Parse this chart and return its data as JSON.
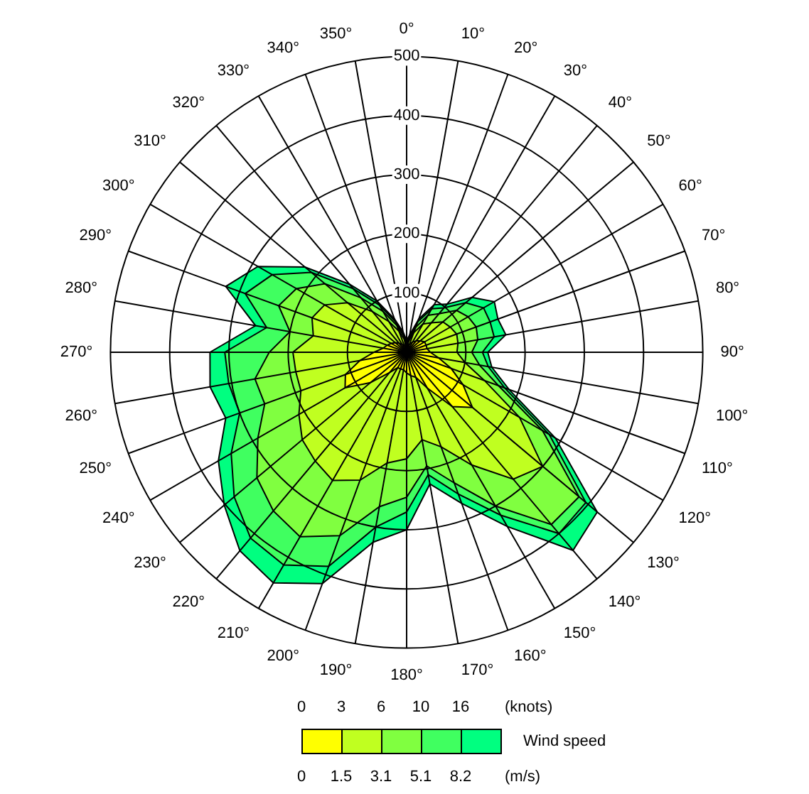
{
  "chart_data": {
    "type": "radar",
    "categories": [
      "0°",
      "10°",
      "20°",
      "30°",
      "40°",
      "50°",
      "60°",
      "70°",
      "80°",
      "90°",
      "100°",
      "110°",
      "120°",
      "130°",
      "140°",
      "150°",
      "160°",
      "170°",
      "180°",
      "190°",
      "200°",
      "210°",
      "220°",
      "230°",
      "240°",
      "250°",
      "260°",
      "270°",
      "280°",
      "290°",
      "300°",
      "310°",
      "320°",
      "330°",
      "340°",
      "350°"
    ],
    "series": [
      {
        "color": "#ffff00",
        "values": [
          8,
          10,
          15,
          20,
          25,
          30,
          35,
          35,
          35,
          40,
          55,
          80,
          110,
          145,
          120,
          70,
          45,
          40,
          35,
          30,
          30,
          30,
          45,
          80,
          120,
          110,
          80,
          55,
          40,
          35,
          30,
          25,
          20,
          15,
          12,
          10
        ]
      },
      {
        "color": "#c0ff20",
        "values": [
          12,
          18,
          35,
          55,
          65,
          80,
          85,
          90,
          88,
          85,
          100,
          140,
          220,
          300,
          280,
          220,
          170,
          150,
          180,
          190,
          230,
          250,
          240,
          230,
          210,
          190,
          190,
          192,
          160,
          170,
          160,
          130,
          90,
          60,
          38,
          22
        ]
      },
      {
        "color": "#80ff40",
        "values": [
          15,
          22,
          45,
          72,
          85,
          110,
          120,
          125,
          122,
          110,
          125,
          165,
          265,
          380,
          380,
          300,
          235,
          195,
          245,
          265,
          330,
          360,
          350,
          330,
          290,
          255,
          260,
          232,
          200,
          230,
          215,
          180,
          120,
          80,
          48,
          28
        ]
      },
      {
        "color": "#40ff60",
        "values": [
          18,
          27,
          55,
          85,
          98,
          130,
          150,
          150,
          150,
          128,
          140,
          176,
          278,
          395,
          400,
          318,
          255,
          210,
          270,
          300,
          385,
          415,
          410,
          380,
          342,
          300,
          305,
          307,
          240,
          290,
          262,
          210,
          140,
          92,
          55,
          32
        ]
      },
      {
        "color": "#00ff80",
        "values": [
          20,
          30,
          60,
          93,
          106,
          144,
          171,
          164,
          170,
          137,
          146,
          184,
          290,
          420,
          437,
          340,
          272,
          226,
          300,
          326,
          416,
          450,
          438,
          402,
          367,
          325,
          337,
          332,
          259,
          325,
          290,
          224,
          150,
          100,
          60,
          35
        ]
      }
    ],
    "ylim": [
      0,
      500
    ],
    "yticks": [
      100,
      200,
      300,
      400,
      500
    ],
    "grid": true,
    "legend_title": "Wind speed",
    "annotations": [
      "0",
      "3",
      "6",
      "10",
      "16",
      "(knots)",
      "0",
      "1.5",
      "3.1",
      "5.1",
      "8.2",
      "(m/s)"
    ]
  }
}
